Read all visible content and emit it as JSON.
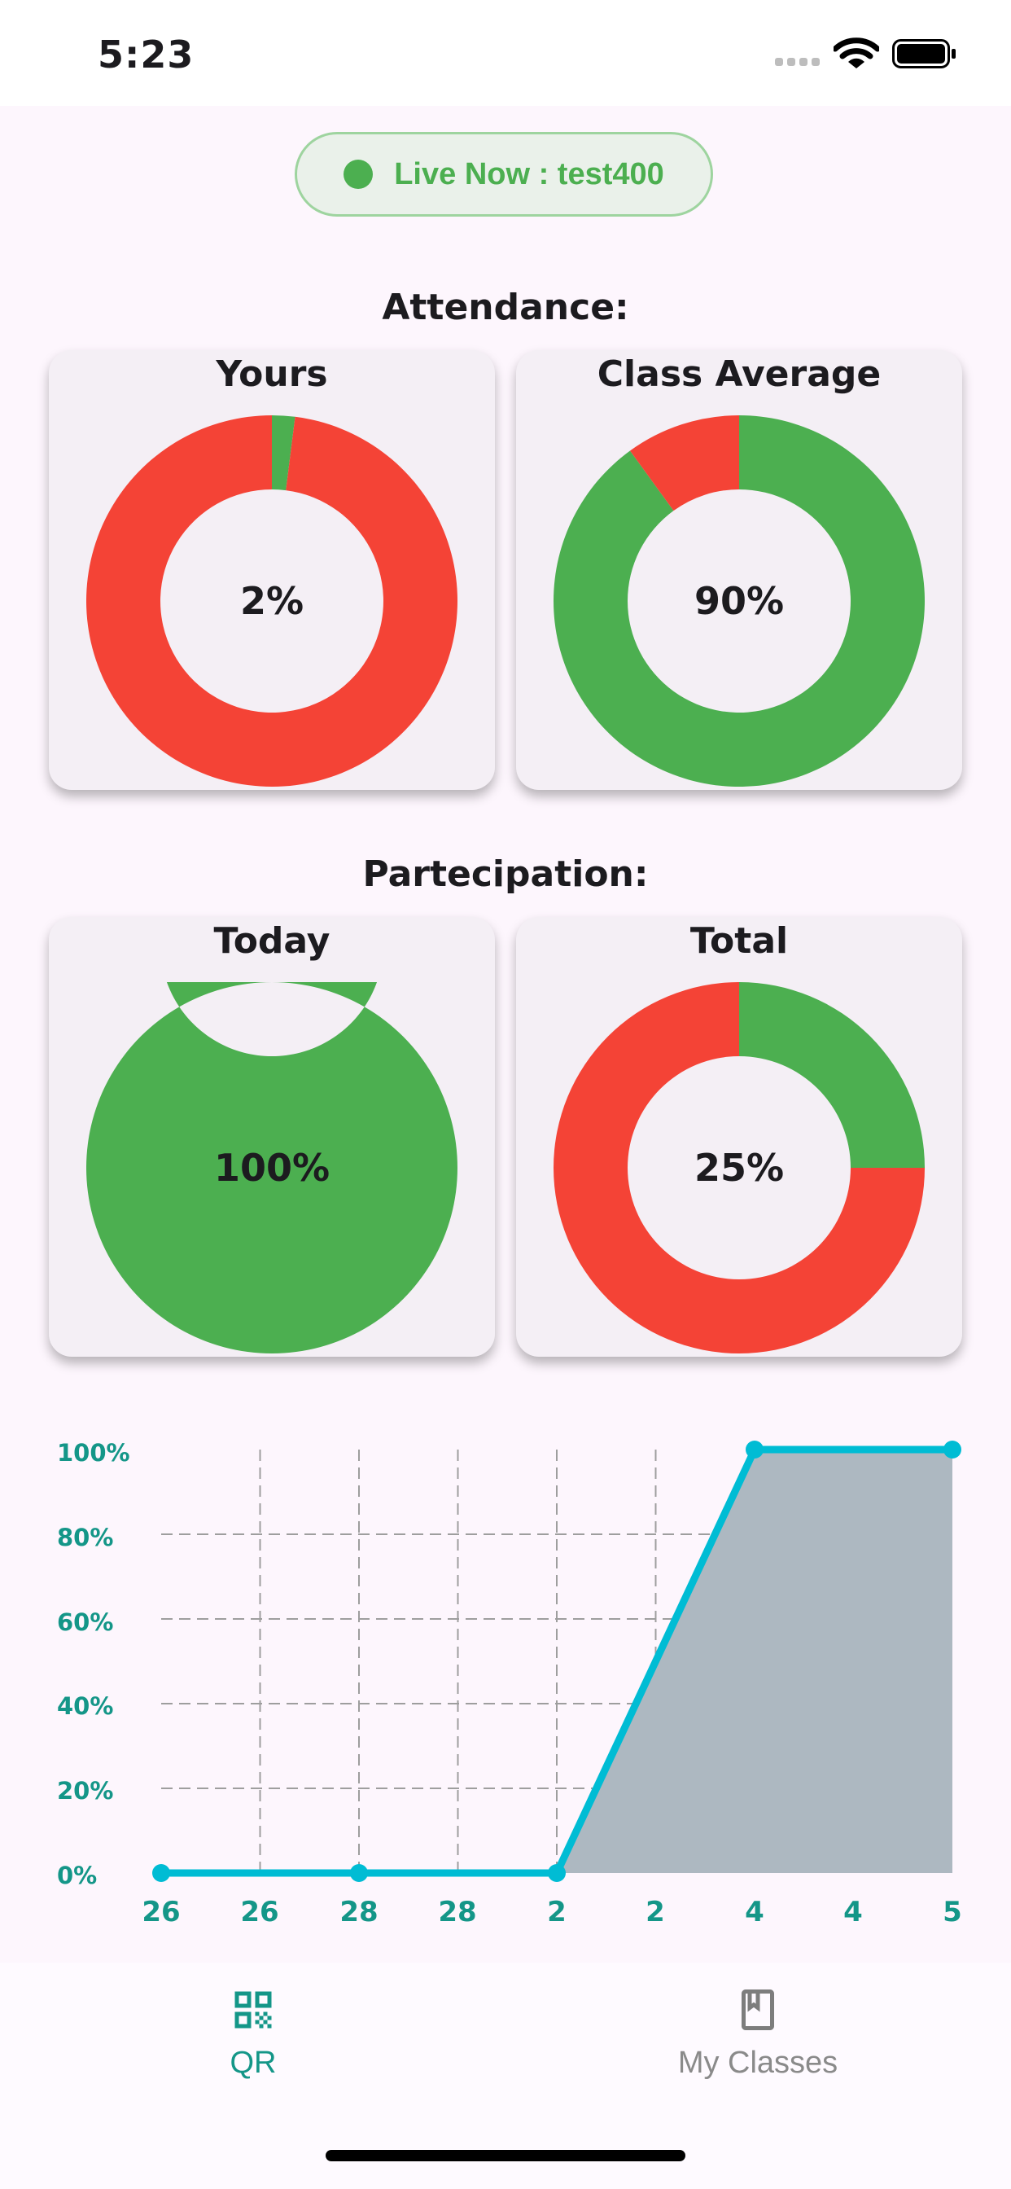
{
  "status_bar": {
    "time": "5:23"
  },
  "live_badge": {
    "text": "Live Now : test400"
  },
  "attendance": {
    "title": "Attendance:",
    "cards": [
      {
        "title": "Yours",
        "label": "2%",
        "value": 2
      },
      {
        "title": "Class Average",
        "label": "90%",
        "value": 90
      }
    ]
  },
  "participation": {
    "title": "Partecipation:",
    "cards": [
      {
        "title": "Today",
        "label": "100%",
        "value": 100
      },
      {
        "title": "Total",
        "label": "25%",
        "value": 25
      }
    ]
  },
  "colors": {
    "positive": "#4caf50",
    "negative": "#f44336",
    "line": "#00bcd4",
    "area": "#adb8c1",
    "axis_text": "#149688"
  },
  "chart_data": {
    "type": "line",
    "categories": [
      "26",
      "26",
      "28",
      "28",
      "2",
      "2",
      "4",
      "4",
      "5"
    ],
    "y_tick_labels": [
      "100%",
      "80%",
      "60%",
      "40%",
      "20%",
      "0%"
    ],
    "series": [
      {
        "values": [
          0,
          null,
          0,
          null,
          0,
          null,
          100,
          null,
          100
        ]
      }
    ],
    "ylim": [
      0,
      100
    ],
    "grid": true,
    "area_fill": true
  },
  "bottom_nav": {
    "items": [
      {
        "label": "QR",
        "icon": "qr-code-icon",
        "active": true
      },
      {
        "label": "My Classes",
        "icon": "book-icon",
        "active": false
      }
    ]
  }
}
